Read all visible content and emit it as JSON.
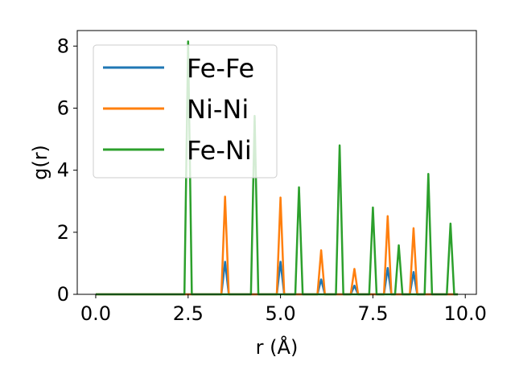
{
  "chart_data": {
    "type": "line",
    "xlabel": "r (Å)",
    "ylabel": "g(r)",
    "xlim": [
      -0.5,
      10.3
    ],
    "ylim": [
      0,
      8.5
    ],
    "xticks": [
      "0.0",
      "2.5",
      "5.0",
      "7.5",
      "10.0"
    ],
    "xtick_values": [
      0.0,
      2.5,
      5.0,
      7.5,
      10.0
    ],
    "yticks": [
      "0",
      "2",
      "4",
      "6",
      "8"
    ],
    "ytick_values": [
      0,
      2,
      4,
      6,
      8
    ],
    "grid": false,
    "legend_position": "top-left",
    "x_range": [
      0.0,
      9.8
    ],
    "peak_half_width": 0.1,
    "series": [
      {
        "name": "Fe-Fe",
        "color": "#1f77b4",
        "peaks": [
          [
            3.5,
            1.05
          ],
          [
            5.0,
            1.05
          ],
          [
            6.1,
            0.48
          ],
          [
            7.0,
            0.28
          ],
          [
            7.9,
            0.85
          ],
          [
            8.6,
            0.72
          ]
        ]
      },
      {
        "name": "Ni-Ni",
        "color": "#ff7f0e",
        "peaks": [
          [
            3.5,
            3.15
          ],
          [
            5.0,
            3.12
          ],
          [
            6.1,
            1.42
          ],
          [
            7.0,
            0.82
          ],
          [
            7.9,
            2.52
          ],
          [
            8.6,
            2.13
          ]
        ]
      },
      {
        "name": "Fe-Ni",
        "color": "#2ca02c",
        "peaks": [
          [
            2.5,
            8.15
          ],
          [
            4.3,
            5.75
          ],
          [
            5.5,
            3.45
          ],
          [
            6.6,
            4.8
          ],
          [
            7.5,
            2.8
          ],
          [
            8.2,
            1.58
          ],
          [
            9.0,
            3.88
          ],
          [
            9.6,
            2.28
          ]
        ]
      }
    ]
  }
}
